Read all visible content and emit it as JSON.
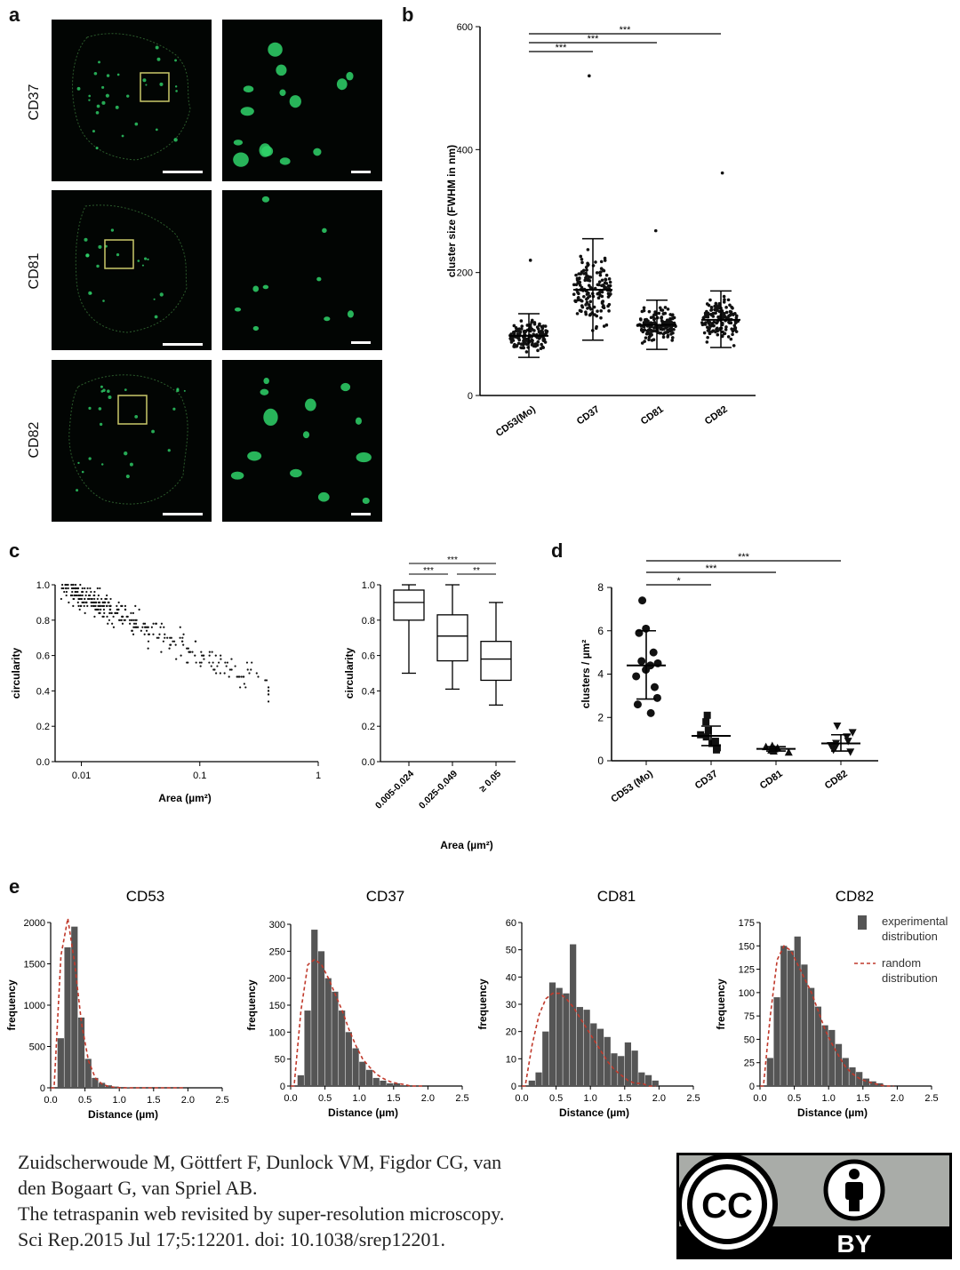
{
  "panel_letters": {
    "a": "a",
    "b": "b",
    "c": "c",
    "d": "d",
    "e": "e"
  },
  "panel_a": {
    "rows": [
      "CD37",
      "CD81",
      "CD82"
    ],
    "colors": {
      "signal": "#2fd36a",
      "roi_box": "#c9c96a",
      "background": "#020503"
    }
  },
  "panel_b": {
    "ylabel": "cluster size (FWHM in nm)",
    "yticks": [
      "0",
      "200",
      "400",
      "600"
    ],
    "categories": [
      "CD53(Mo)",
      "CD37",
      "CD81",
      "CD82"
    ],
    "sig": [
      "***",
      "***",
      "***"
    ]
  },
  "panel_c_scatter": {
    "ylabel": "circularity",
    "xlabel": "Area (µm²)",
    "yticks": [
      "0.0",
      "0.2",
      "0.4",
      "0.6",
      "0.8",
      "1.0"
    ],
    "xticks": [
      "0.01",
      "0.1",
      "1"
    ]
  },
  "panel_c_box": {
    "ylabel": "circularity",
    "xlabel": "Area (µm²)",
    "yticks": [
      "0.0",
      "0.2",
      "0.4",
      "0.6",
      "0.8",
      "1.0"
    ],
    "categories": [
      "0.005-0.024",
      "0.025-0.049",
      "≥ 0.05"
    ],
    "sig": [
      "***",
      "***",
      "**"
    ]
  },
  "panel_d": {
    "ylabel": "clusters / µm²",
    "yticks": [
      "0",
      "2",
      "4",
      "6",
      "8"
    ],
    "categories": [
      "CD53 (Mo)",
      "CD37",
      "CD81",
      "CD82"
    ],
    "sig": [
      "*",
      "***",
      "***"
    ]
  },
  "panel_e": {
    "titles": [
      "CD53",
      "CD37",
      "CD81",
      "CD82"
    ],
    "ylabel": "frequency",
    "xlabel": "Distance (µm)",
    "xticks": [
      "0.0",
      "0.5",
      "1.0",
      "1.5",
      "2.0",
      "2.5"
    ],
    "yticks": [
      [
        "0",
        "500",
        "1000",
        "1500",
        "2000"
      ],
      [
        "0",
        "50",
        "100",
        "150",
        "200",
        "250",
        "300"
      ],
      [
        "0",
        "10",
        "20",
        "30",
        "40",
        "50",
        "60"
      ],
      [
        "0",
        "25",
        "50",
        "75",
        "100",
        "125",
        "150",
        "175"
      ]
    ],
    "legend": {
      "exp_line1": "experimental",
      "exp_line2": "distribution",
      "rand_line1": "random",
      "rand_line2": "distribution"
    },
    "colors": {
      "bars": "#555555",
      "random": "#c0392b"
    }
  },
  "citation": {
    "line1": "Zuidscherwoude M, Göttfert F, Dunlock VM, Figdor CG, van",
    "line2": "den Bogaart G, van Spriel AB.",
    "line3": "The tetraspanin web revisited by super-resolution microscopy.",
    "line4": "Sci Rep.2015 Jul 17;5:12201. doi: 10.1038/srep12201."
  },
  "license_badge": {
    "cc": "CC",
    "by": "BY"
  },
  "chart_data": [
    {
      "panel": "b",
      "type": "scatter",
      "title": "",
      "xlabel": "",
      "ylabel": "cluster size (FWHM in nm)",
      "categories": [
        "CD53(Mo)",
        "CD37",
        "CD81",
        "CD82"
      ],
      "ylim": [
        0,
        600
      ],
      "mean": [
        97,
        172,
        115,
        123
      ],
      "sd_low": [
        62,
        90,
        75,
        78
      ],
      "sd_high": [
        133,
        255,
        155,
        170
      ],
      "max_values": [
        220,
        520,
        268,
        362
      ],
      "significance": [
        {
          "pair": [
            "CD53(Mo)",
            "CD37"
          ],
          "label": "***"
        },
        {
          "pair": [
            "CD53(Mo)",
            "CD81"
          ],
          "label": "***"
        },
        {
          "pair": [
            "CD53(Mo)",
            "CD82"
          ],
          "label": "***"
        }
      ]
    },
    {
      "panel": "c-left",
      "type": "scatter",
      "title": "",
      "xlabel": "Area (µm²)",
      "ylabel": "circularity",
      "xscale": "log",
      "xlim": [
        0.006,
        1
      ],
      "ylim": [
        0,
        1.0
      ]
    },
    {
      "panel": "c-right",
      "type": "box",
      "title": "",
      "xlabel": "Area (µm²)",
      "ylabel": "circularity",
      "categories": [
        "0.005-0.024",
        "0.025-0.049",
        "≥ 0.05"
      ],
      "ylim": [
        0,
        1.0
      ],
      "whisker_low": [
        0.5,
        0.41,
        0.32
      ],
      "q1": [
        0.8,
        0.57,
        0.46
      ],
      "median": [
        0.9,
        0.71,
        0.58
      ],
      "q3": [
        0.97,
        0.83,
        0.68
      ],
      "whisker_high": [
        1.0,
        1.0,
        0.9
      ],
      "significance": [
        {
          "pair": [
            "0.005-0.024",
            "0.025-0.049"
          ],
          "label": "***"
        },
        {
          "pair": [
            "0.005-0.024",
            "≥ 0.05"
          ],
          "label": "***"
        },
        {
          "pair": [
            "0.025-0.049",
            "≥ 0.05"
          ],
          "label": "**"
        }
      ]
    },
    {
      "panel": "d",
      "type": "scatter",
      "title": "",
      "xlabel": "",
      "ylabel": "clusters / µm²",
      "categories": [
        "CD53 (Mo)",
        "CD37",
        "CD81",
        "CD82"
      ],
      "ylim": [
        0,
        8
      ],
      "mean": [
        4.4,
        1.15,
        0.55,
        0.8
      ],
      "sd_low": [
        2.85,
        0.7,
        0.45,
        0.45
      ],
      "sd_high": [
        6.0,
        1.6,
        0.65,
        1.2
      ],
      "points": [
        [
          7.4,
          6.1,
          5.9,
          5.0,
          4.6,
          4.5,
          4.4,
          4.2,
          3.9,
          3.4,
          2.9,
          2.6,
          2.2
        ],
        [
          2.1,
          1.8,
          1.4,
          1.2,
          1.1,
          0.9,
          0.8,
          0.6,
          0.5
        ],
        [
          0.7,
          0.65,
          0.6,
          0.55,
          0.5,
          0.5,
          0.45,
          0.4
        ],
        [
          1.6,
          1.3,
          1.1,
          0.9,
          0.8,
          0.7,
          0.6,
          0.5,
          0.4
        ]
      ],
      "significance": [
        {
          "pair": [
            "CD53 (Mo)",
            "CD37"
          ],
          "label": "*"
        },
        {
          "pair": [
            "CD53 (Mo)",
            "CD81"
          ],
          "label": "***"
        },
        {
          "pair": [
            "CD53 (Mo)",
            "CD82"
          ],
          "label": "***"
        }
      ]
    },
    {
      "panel": "e",
      "type": "bar",
      "xlabel": "Distance (µm)",
      "ylabel": "frequency",
      "bin_width": 0.1,
      "bin_starts": [
        0.0,
        0.1,
        0.2,
        0.3,
        0.4,
        0.5,
        0.6,
        0.7,
        0.8,
        0.9,
        1.0,
        1.1,
        1.2,
        1.3,
        1.4,
        1.5,
        1.6,
        1.7,
        1.8,
        1.9
      ],
      "series": [
        {
          "name": "CD53",
          "ylim": [
            0,
            2000
          ],
          "values": [
            0,
            600,
            1700,
            1950,
            850,
            350,
            120,
            60,
            30,
            15,
            10,
            5,
            0,
            0,
            0,
            0,
            0,
            0,
            0,
            0
          ],
          "random_distribution": [
            0,
            1600,
            2050,
            1500,
            780,
            330,
            120,
            45,
            15,
            5,
            0,
            0,
            0,
            0,
            0,
            0,
            0,
            0,
            0,
            0
          ]
        },
        {
          "name": "CD37",
          "ylim": [
            0,
            300
          ],
          "values": [
            0,
            20,
            140,
            290,
            250,
            200,
            175,
            140,
            100,
            70,
            45,
            30,
            15,
            10,
            5,
            5,
            0,
            0,
            0,
            0
          ],
          "random_distribution": [
            0,
            140,
            225,
            235,
            225,
            200,
            170,
            140,
            105,
            75,
            50,
            35,
            22,
            14,
            8,
            5,
            3,
            0,
            0,
            0
          ]
        },
        {
          "name": "CD81",
          "ylim": [
            0,
            60
          ],
          "values": [
            0,
            2,
            5,
            20,
            38,
            36,
            34,
            52,
            29,
            28,
            23,
            21,
            18,
            12,
            11,
            16,
            13,
            5,
            4,
            2
          ],
          "random_distribution": [
            0,
            15,
            26,
            32,
            34,
            34,
            32,
            29,
            25,
            21,
            17,
            13,
            9,
            6,
            4,
            2,
            1,
            1,
            0,
            0
          ]
        },
        {
          "name": "CD82",
          "ylim": [
            0,
            175
          ],
          "values": [
            0,
            30,
            95,
            150,
            145,
            160,
            130,
            105,
            85,
            65,
            60,
            45,
            30,
            20,
            15,
            8,
            5,
            3,
            0,
            0
          ],
          "random_distribution": [
            0,
            75,
            135,
            150,
            145,
            130,
            115,
            100,
            80,
            60,
            45,
            32,
            20,
            13,
            8,
            5,
            3,
            1,
            0,
            0
          ]
        }
      ]
    }
  ]
}
